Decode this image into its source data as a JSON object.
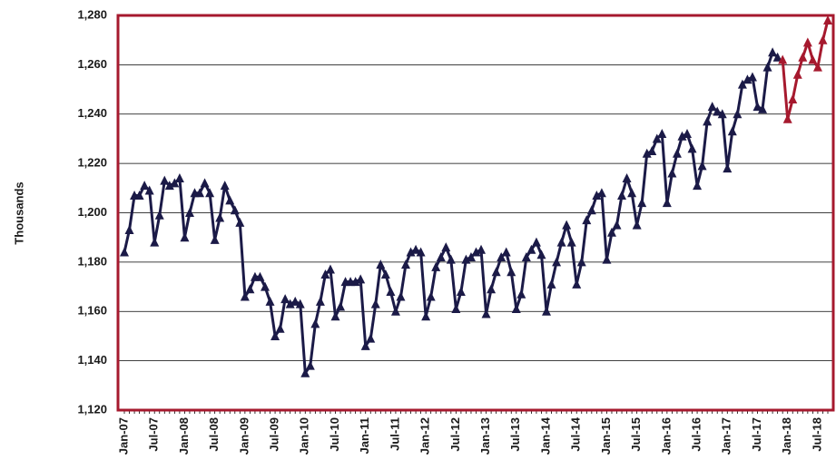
{
  "chart_data": {
    "type": "line",
    "y_label": "Thousands",
    "ylim": [
      1120,
      1280
    ],
    "yticks": [
      {
        "value": 1120,
        "label": "1,120"
      },
      {
        "value": 1140,
        "label": "1,140"
      },
      {
        "value": 1160,
        "label": "1,160"
      },
      {
        "value": 1180,
        "label": "1,180"
      },
      {
        "value": 1200,
        "label": "1,200"
      },
      {
        "value": 1220,
        "label": "1,220"
      },
      {
        "value": 1240,
        "label": "1,240"
      },
      {
        "value": 1260,
        "label": "1,260"
      },
      {
        "value": 1280,
        "label": "1,280"
      }
    ],
    "grid": true,
    "marker": "triangle",
    "frame_color": "#a6192e",
    "categories": [
      "Jan-07",
      null,
      null,
      null,
      null,
      null,
      "Jul-07",
      null,
      null,
      null,
      null,
      null,
      "Jan-08",
      null,
      null,
      null,
      null,
      null,
      "Jul-08",
      null,
      null,
      null,
      null,
      null,
      "Jan-09",
      null,
      null,
      null,
      null,
      null,
      "Jul-09",
      null,
      null,
      null,
      null,
      null,
      "Jan-10",
      null,
      null,
      null,
      null,
      null,
      "Jul-10",
      null,
      null,
      null,
      null,
      null,
      "Jan-11",
      null,
      null,
      null,
      null,
      null,
      "Jul-11",
      null,
      null,
      null,
      null,
      null,
      "Jan-12",
      null,
      null,
      null,
      null,
      null,
      "Jul-12",
      null,
      null,
      null,
      null,
      null,
      "Jan-13",
      null,
      null,
      null,
      null,
      null,
      "Jul-13",
      null,
      null,
      null,
      null,
      null,
      "Jan-14",
      null,
      null,
      null,
      null,
      null,
      "Jul-14",
      null,
      null,
      null,
      null,
      null,
      "Jan-15",
      null,
      null,
      null,
      null,
      null,
      "Jul-15",
      null,
      null,
      null,
      null,
      null,
      "Jan-16",
      null,
      null,
      null,
      null,
      null,
      "Jul-16",
      null,
      null,
      null,
      null,
      null,
      "Jan-17",
      null,
      null,
      null,
      null,
      null,
      "Jul-17",
      null,
      null,
      null,
      null,
      null,
      "Jan-18",
      null,
      null,
      null,
      null,
      null,
      "Jul-18",
      null,
      null
    ],
    "series": [
      {
        "color": "#1b1a47",
        "values": [
          1184,
          1193,
          1207,
          1207,
          1211,
          1209,
          1188,
          1199,
          1213,
          1211,
          1212,
          1214,
          1190,
          1200,
          1208,
          1208,
          1212,
          1208,
          1189,
          1198,
          1211,
          1205,
          1201,
          1196,
          1166,
          1169,
          1174,
          1174,
          1170,
          1164,
          1150,
          1153,
          1165,
          1163,
          1164,
          1163,
          1135,
          1138,
          1155,
          1164,
          1175,
          1177,
          1158,
          1162,
          1172,
          1172,
          1172,
          1173,
          1146,
          1149,
          1163,
          1179,
          1175,
          1168,
          1160,
          1166,
          1179,
          1184,
          1185,
          1184,
          1158,
          1166,
          1178,
          1182,
          1186,
          1181,
          1161,
          1168,
          1181,
          1182,
          1184,
          1185,
          1159,
          1169,
          1176,
          1182,
          1184,
          1176,
          1161,
          1167,
          1182,
          1185,
          1188,
          1183,
          1160,
          1171,
          1180,
          1188,
          1195,
          1188,
          1171,
          1180,
          1197,
          1201,
          1207,
          1208,
          1181,
          1192,
          1195,
          1207,
          1214,
          1208,
          1195,
          1204,
          1224,
          1225,
          1230,
          1232,
          1204,
          1216,
          1224,
          1231,
          1232,
          1226,
          1211,
          1219,
          1237,
          1243,
          1241,
          1240,
          1218,
          1233,
          1240,
          1252,
          1254,
          1255,
          1243,
          1242,
          1259,
          1265,
          1263,
          null,
          null,
          null,
          null,
          null,
          null,
          null,
          null,
          null,
          null
        ]
      },
      {
        "color": "#a6192e",
        "values": [
          null,
          null,
          null,
          null,
          null,
          null,
          null,
          null,
          null,
          null,
          null,
          null,
          null,
          null,
          null,
          null,
          null,
          null,
          null,
          null,
          null,
          null,
          null,
          null,
          null,
          null,
          null,
          null,
          null,
          null,
          null,
          null,
          null,
          null,
          null,
          null,
          null,
          null,
          null,
          null,
          null,
          null,
          null,
          null,
          null,
          null,
          null,
          null,
          null,
          null,
          null,
          null,
          null,
          null,
          null,
          null,
          null,
          null,
          null,
          null,
          null,
          null,
          null,
          null,
          null,
          null,
          null,
          null,
          null,
          null,
          null,
          null,
          null,
          null,
          null,
          null,
          null,
          null,
          null,
          null,
          null,
          null,
          null,
          null,
          null,
          null,
          null,
          null,
          null,
          null,
          null,
          null,
          null,
          null,
          null,
          null,
          null,
          null,
          null,
          null,
          null,
          null,
          null,
          null,
          null,
          null,
          null,
          null,
          null,
          null,
          null,
          null,
          null,
          null,
          null,
          null,
          null,
          null,
          null,
          null,
          null,
          null,
          null,
          null,
          null,
          null,
          null,
          null,
          null,
          null,
          null,
          1262,
          1238,
          1246,
          1256,
          1263,
          1269,
          1262,
          1259,
          1270,
          1278
        ]
      }
    ]
  }
}
